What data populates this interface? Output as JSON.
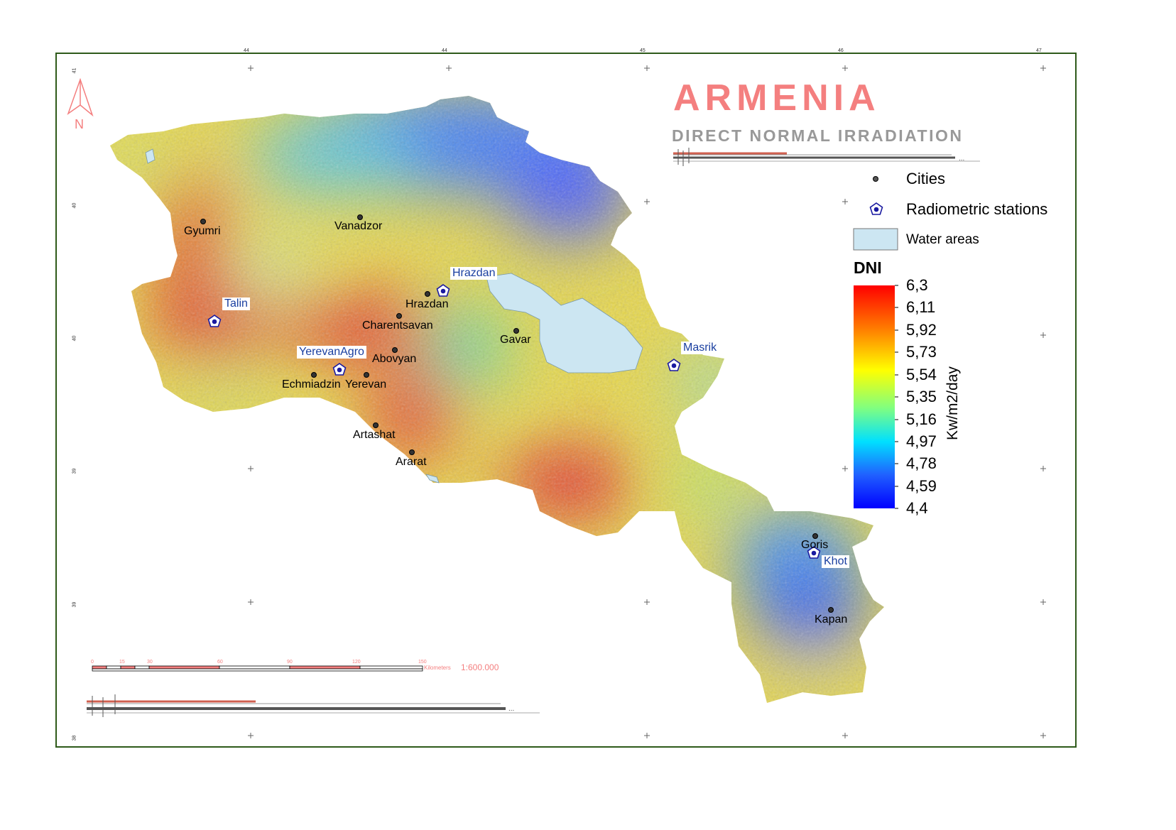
{
  "title": "ARMENIA",
  "subtitle": "DIRECT NORMAL IRRADIATION",
  "north_arrow": {
    "label": "N",
    "icon": "north-arrow-icon"
  },
  "legend": {
    "items": [
      {
        "label": "Cities",
        "icon": "city-dot-icon"
      },
      {
        "label": "Radiometric stations",
        "icon": "pentagon-station-icon"
      },
      {
        "label": "Water areas",
        "icon": "water-swatch"
      }
    ],
    "colorbar": {
      "title": "DNI",
      "unit": "Kw/m2/day",
      "ticks": [
        "6,3",
        "6,11",
        "5,92",
        "5,73",
        "5,54",
        "5,35",
        "5,16",
        "4,97",
        "4,78",
        "4,59",
        "4,4"
      ],
      "max": 6.3,
      "min": 4.4,
      "colors": [
        "#ff0000",
        "#ff8000",
        "#ffff00",
        "#80ff80",
        "#00e0ff",
        "#2060ff",
        "#0000ff"
      ]
    }
  },
  "cities": [
    "Gyumri",
    "Vanadzor",
    "Hrazdan",
    "Charentsavan",
    "Gavar",
    "Abovyan",
    "Echmiadzin",
    "Yerevan",
    "Artashat",
    "Ararat",
    "Goris",
    "Kapan"
  ],
  "stations": [
    "Talin",
    "Hrazdan",
    "YerevanAgro",
    "Masrik",
    "Khot"
  ],
  "scale_bar": {
    "ticks": [
      "0",
      "15",
      "30",
      "60",
      "90",
      "120",
      "150"
    ],
    "unit": "Kilometers",
    "ratio": "1:600.000"
  },
  "graticule": {
    "top": [
      "44",
      "44",
      "45",
      "46",
      "47"
    ],
    "left": [
      "41",
      "40",
      "40",
      "39",
      "39",
      "38"
    ]
  },
  "colors": {
    "title": "#f47f7f",
    "water": "#cce6f2",
    "station": "#1a1aa0",
    "frame": "#2e5a1a"
  }
}
